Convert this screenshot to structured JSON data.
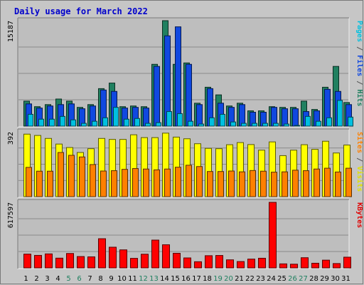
{
  "chart_data": {
    "type": "bar",
    "title": "Daily usage for March 2022",
    "days": [
      "1",
      "2",
      "3",
      "4",
      "5",
      "6",
      "7",
      "8",
      "9",
      "10",
      "11",
      "12",
      "13",
      "14",
      "15",
      "16",
      "17",
      "18",
      "19",
      "20",
      "21",
      "22",
      "23",
      "24",
      "25",
      "26",
      "27",
      "28",
      "29",
      "30",
      "31"
    ],
    "weekend_days": [
      "5",
      "6",
      "12",
      "13",
      "19",
      "20",
      "26",
      "27"
    ],
    "panels": [
      {
        "id": "top",
        "max_label": "15187",
        "ymax": 15187,
        "right_labels": [
          {
            "text": "Pages",
            "color": "#00c0e0"
          },
          {
            "text": " / ",
            "color": "#555555"
          },
          {
            "text": "Files",
            "color": "#1048e0"
          },
          {
            "text": " / ",
            "color": "#555555"
          },
          {
            "text": "Hits",
            "color": "#208060"
          }
        ],
        "series": [
          {
            "name": "Hits",
            "color": "#208060",
            "values": [
              3600,
              2800,
              3100,
              3900,
              3600,
              2700,
              3100,
              5400,
              6200,
              2800,
              2900,
              2800,
              8900,
              15187,
              8900,
              9100,
              3300,
              5600,
              4500,
              2900,
              3300,
              2200,
              2200,
              2800,
              2700,
              2700,
              3600,
              2400,
              5600,
              8600,
              3400
            ]
          },
          {
            "name": "Files",
            "color": "#1048e0",
            "values": [
              3200,
              2600,
              2900,
              3100,
              3200,
              2500,
              2900,
              5200,
              5000,
              2600,
              2700,
              2600,
              8600,
              13000,
              14300,
              8900,
              3100,
              5400,
              3300,
              2700,
              3100,
              2000,
              2000,
              2700,
              2500,
              2500,
              2100,
              2200,
              5300,
              5000,
              3100
            ]
          },
          {
            "name": "Pages",
            "color": "#00c0e0",
            "values": [
              1700,
              1000,
              1000,
              1400,
              900,
              400,
              700,
              1200,
              2700,
              1000,
              1100,
              400,
              500,
              2100,
              1800,
              700,
              300,
              1200,
              1700,
              600,
              400,
              400,
              400,
              400,
              300,
              100,
              1400,
              700,
              1200,
              3700,
              1300
            ]
          }
        ]
      },
      {
        "id": "middle",
        "max_label": "392",
        "ymax": 392,
        "right_labels": [
          {
            "text": "Sites",
            "color": "#ff8000"
          },
          {
            "text": " / ",
            "color": "#555555"
          },
          {
            "text": "Visits",
            "color": "#e0e000"
          }
        ],
        "series": [
          {
            "name": "Visits",
            "color": "#ffff00",
            "values": [
              378,
              370,
              352,
              318,
              297,
              267,
              290,
              352,
              346,
              346,
              374,
              357,
              357,
              384,
              360,
              350,
              320,
              292,
              290,
              314,
              327,
              315,
              281,
              331,
              248,
              281,
              314,
              286,
              335,
              264,
              312
            ]
          },
          {
            "name": "Sites",
            "color": "#ff8000",
            "values": [
              177,
              154,
              154,
              267,
              250,
              240,
              194,
              155,
              157,
              165,
              170,
              167,
              162,
              167,
              178,
              190,
              182,
              152,
              152,
              155,
              150,
              158,
              154,
              148,
              150,
              160,
              157,
              167,
              172,
              149,
              172
            ]
          }
        ]
      },
      {
        "id": "bottom",
        "max_label": "617597",
        "ymax": 617597,
        "right_labels": [
          {
            "text": "KBytes",
            "color": "#e00000"
          }
        ],
        "series": [
          {
            "name": "KBytes",
            "color": "#ff0000",
            "values": [
              130000,
              118000,
              132000,
              92000,
              136000,
              107000,
              104000,
              275000,
              195000,
              170000,
              90000,
              129000,
              262000,
              218000,
              138000,
              94000,
              58000,
              115000,
              117000,
              76000,
              60000,
              83000,
              91000,
              617597,
              38000,
              35000,
              96000,
              44000,
              73000,
              41000,
              101000
            ]
          }
        ]
      }
    ]
  }
}
